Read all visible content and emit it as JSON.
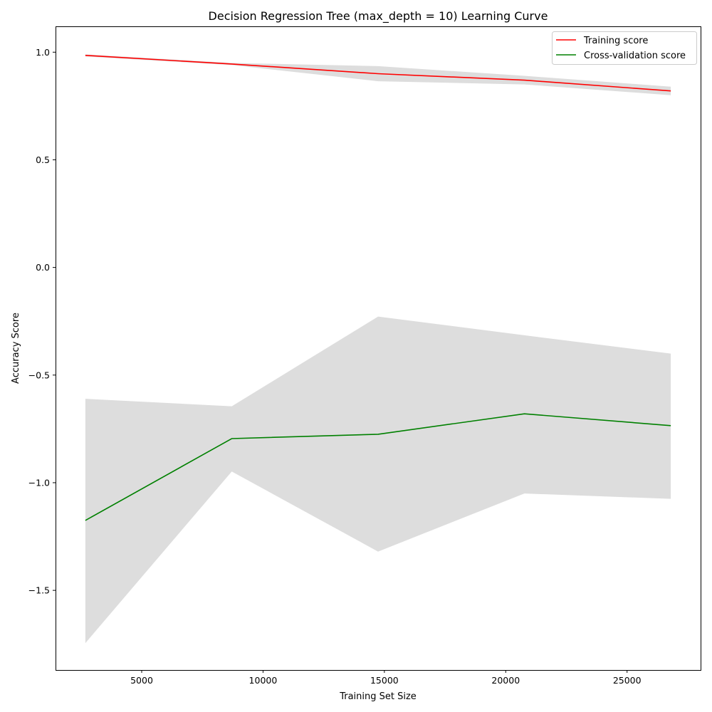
{
  "chart_data": {
    "type": "line",
    "title": "Decision Regression Tree (max_depth = 10) Learning Curve",
    "xlabel": "Training Set Size",
    "ylabel": "Accuracy Score",
    "xlim": [
      1450,
      28030
    ],
    "ylim": [
      -1.87,
      1.12
    ],
    "xticks": [
      5000,
      10000,
      15000,
      20000,
      25000
    ],
    "xtick_labels": [
      "5000",
      "10000",
      "15000",
      "20000",
      "25000"
    ],
    "yticks": [
      -1.5,
      -1.0,
      -0.5,
      0.0,
      0.5,
      1.0
    ],
    "ytick_labels": [
      "−1.5",
      "−1.0",
      "−0.5",
      "0.0",
      "0.5",
      "1.0"
    ],
    "grid": false,
    "legend_position": "top-right",
    "x": [
      2680,
      8710,
      14740,
      20770,
      26800
    ],
    "series": [
      {
        "name": "Training score",
        "color": "#ff0000",
        "values": [
          0.985,
          0.945,
          0.9,
          0.87,
          0.82
        ],
        "band_upper": [
          0.99,
          0.95,
          0.935,
          0.89,
          0.84
        ],
        "band_lower": [
          0.98,
          0.94,
          0.865,
          0.85,
          0.8
        ]
      },
      {
        "name": "Cross-validation score",
        "color": "#008000",
        "values": [
          -1.175,
          -0.795,
          -0.775,
          -0.68,
          -0.735
        ],
        "band_upper": [
          -0.61,
          -0.645,
          -0.228,
          -0.315,
          -0.4
        ],
        "band_lower": [
          -1.745,
          -0.948,
          -1.32,
          -1.05,
          -1.075
        ]
      }
    ],
    "band_color": "#dddddd"
  }
}
